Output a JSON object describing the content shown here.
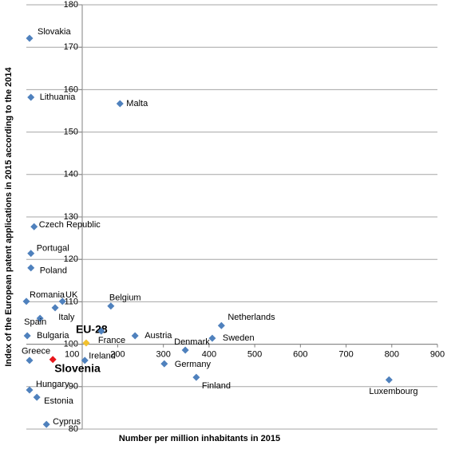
{
  "chart_data": {
    "type": "scatter",
    "x_label": "Number per million inhabitants in 2015",
    "y_label": "Index of the European patent applications in 2015 according to the 2014",
    "xlim": [
      0,
      900
    ],
    "xticks": [
      100,
      200,
      300,
      400,
      500,
      600,
      700,
      800,
      900
    ],
    "ylim": [
      80,
      180
    ],
    "yticks": [
      80,
      90,
      100,
      110,
      120,
      130,
      140,
      150,
      160,
      170,
      180
    ],
    "grid": true,
    "labels": [
      "Slovakia",
      "Lithuania",
      "Malta",
      "Czech Republic",
      "Portugal",
      "Poland",
      "Romania",
      "UK",
      "Belgium",
      "Spain",
      "Italy",
      "Bulgaria",
      "EU-28",
      "France",
      "Austria",
      "Netherlands",
      "Sweden",
      "Denmark",
      "Ireland",
      "Germany",
      "Greece",
      "Slovenia",
      "Finland",
      "Luxembourg",
      "Hungary",
      "Estonia",
      "Cyprus"
    ],
    "x": [
      7,
      10,
      205,
      17,
      10,
      10,
      0,
      63,
      185,
      30,
      79,
      2,
      131,
      164,
      238,
      427,
      407,
      348,
      128,
      302,
      7,
      58,
      372,
      794,
      7,
      23,
      44
    ],
    "y": [
      172.1,
      158.2,
      156.7,
      127.7,
      121.4,
      118.0,
      110.1,
      108.6,
      109.0,
      106.1,
      110.1,
      102.0,
      100.3,
      103.1,
      102.0,
      104.4,
      101.4,
      98.6,
      96.2,
      95.4,
      96.2,
      96.4,
      92.2,
      91.6,
      89.2,
      87.5,
      81.1
    ],
    "colors": [
      "#4f81bd",
      "#4f81bd",
      "#4f81bd",
      "#4f81bd",
      "#4f81bd",
      "#4f81bd",
      "#4f81bd",
      "#4f81bd",
      "#4f81bd",
      "#4f81bd",
      "#4f81bd",
      "#4f81bd",
      "#f2c12e",
      "#4f81bd",
      "#4f81bd",
      "#4f81bd",
      "#4f81bd",
      "#4f81bd",
      "#4f81bd",
      "#4f81bd",
      "#4f81bd",
      "#e8161b",
      "#4f81bd",
      "#4f81bd",
      "#4f81bd",
      "#4f81bd",
      "#4f81bd"
    ]
  }
}
